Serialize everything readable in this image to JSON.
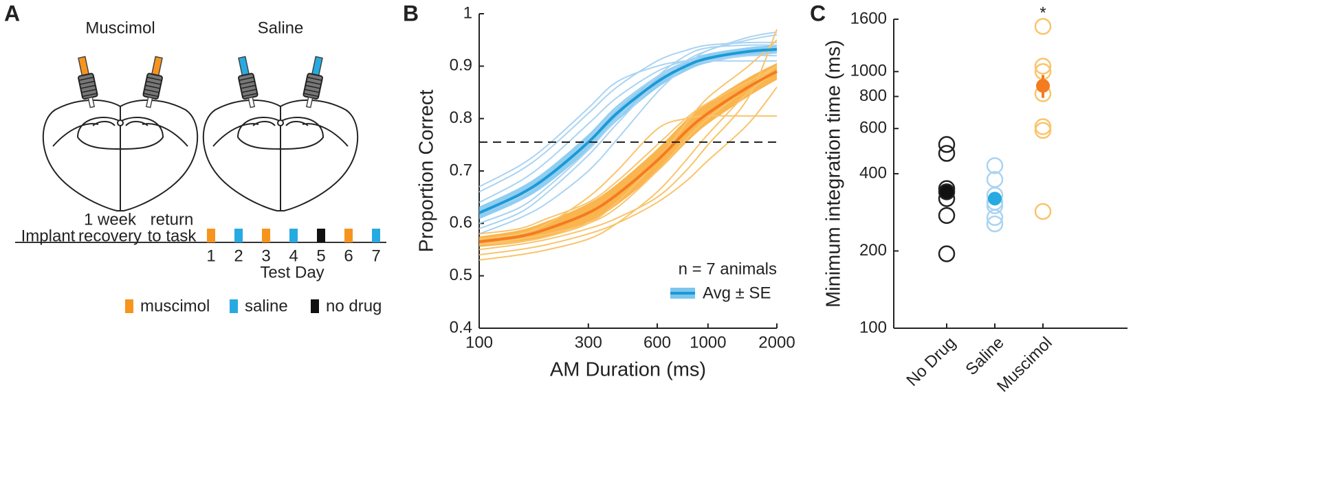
{
  "panel_labels": [
    "A",
    "B",
    "C"
  ],
  "diagram": {
    "drugs": [
      {
        "name": "Muscimol",
        "color": "#f7941d"
      },
      {
        "name": "Saline",
        "color": "#27aae1"
      }
    ],
    "timeline": [
      [
        "Implant"
      ],
      [
        "1 week",
        "recovery"
      ],
      [
        "return",
        "to task"
      ]
    ],
    "days": [
      "1",
      "2",
      "3",
      "4",
      "5",
      "6",
      "7"
    ],
    "day_colors": [
      "#f7941d",
      "#27aae1",
      "#f7941d",
      "#27aae1",
      "#111111",
      "#f7941d",
      "#27aae1"
    ],
    "axis_label": "Test Day",
    "legend": [
      {
        "name": "muscimol",
        "color": "#f7941d"
      },
      {
        "name": "saline",
        "color": "#27aae1"
      },
      {
        "name": "no drug",
        "color": "#111111"
      }
    ]
  },
  "chart_data": [
    {
      "type": "line",
      "xlabel": "AM Duration (ms)",
      "ylabel": "Proportion Correct",
      "xscale": "log",
      "x": [
        100,
        150,
        200,
        300,
        400,
        600,
        800,
        1000,
        1500,
        2000
      ],
      "xlim": [
        100,
        2000
      ],
      "xticks": [
        100,
        300,
        600,
        1000,
        2000
      ],
      "ylim": [
        0.4,
        1
      ],
      "yticks": [
        0.4,
        0.5,
        0.6,
        0.7,
        0.8,
        0.9,
        1
      ],
      "reference_line": 0.755,
      "legend_title": "n = 7 animals",
      "legend": "lower right",
      "series": [
        {
          "color": "#a9d3f2",
          "line_width": 2,
          "values": [
            0.66,
            0.7,
            0.74,
            0.81,
            0.86,
            0.91,
            0.93,
            0.94,
            0.945,
            0.945
          ]
        },
        {
          "color": "#a9d3f2",
          "line_width": 2,
          "values": [
            0.6,
            0.63,
            0.67,
            0.74,
            0.8,
            0.88,
            0.92,
            0.935,
            0.94,
            0.94
          ]
        },
        {
          "color": "#a9d3f2",
          "line_width": 2,
          "values": [
            0.58,
            0.61,
            0.64,
            0.7,
            0.76,
            0.85,
            0.9,
            0.93,
            0.95,
            0.96
          ]
        },
        {
          "color": "#a9d3f2",
          "line_width": 2,
          "values": [
            0.64,
            0.68,
            0.72,
            0.79,
            0.84,
            0.89,
            0.91,
            0.915,
            0.92,
            0.92
          ]
        },
        {
          "color": "#a9d3f2",
          "line_width": 2,
          "values": [
            0.67,
            0.71,
            0.75,
            0.82,
            0.87,
            0.9,
            0.91,
            0.91,
            0.91,
            0.91
          ]
        },
        {
          "color": "#a9d3f2",
          "line_width": 2,
          "values": [
            0.59,
            0.62,
            0.66,
            0.73,
            0.79,
            0.87,
            0.91,
            0.93,
            0.955,
            0.965
          ]
        },
        {
          "color": "#a9d3f2",
          "line_width": 2,
          "values": [
            0.62,
            0.65,
            0.69,
            0.76,
            0.82,
            0.88,
            0.9,
            0.91,
            0.92,
            0.925
          ]
        },
        {
          "color": "#f9c46b",
          "line_width": 2,
          "values": [
            0.56,
            0.57,
            0.58,
            0.6,
            0.63,
            0.7,
            0.76,
            0.8,
            0.86,
            0.9
          ]
        },
        {
          "color": "#f9c46b",
          "line_width": 2,
          "values": [
            0.53,
            0.54,
            0.55,
            0.57,
            0.6,
            0.66,
            0.72,
            0.77,
            0.85,
            0.89
          ]
        },
        {
          "color": "#f9c46b",
          "line_width": 2,
          "values": [
            0.57,
            0.58,
            0.6,
            0.65,
            0.7,
            0.78,
            0.8,
            0.805,
            0.805,
            0.805
          ]
        },
        {
          "color": "#f9c46b",
          "line_width": 2,
          "values": [
            0.55,
            0.56,
            0.57,
            0.59,
            0.61,
            0.65,
            0.7,
            0.75,
            0.84,
            0.97
          ]
        },
        {
          "color": "#f9c46b",
          "line_width": 2,
          "values": [
            0.58,
            0.59,
            0.61,
            0.64,
            0.68,
            0.75,
            0.8,
            0.83,
            0.87,
            0.9
          ]
        },
        {
          "color": "#f9c46b",
          "line_width": 2,
          "values": [
            0.54,
            0.55,
            0.56,
            0.58,
            0.6,
            0.64,
            0.68,
            0.72,
            0.79,
            0.86
          ]
        },
        {
          "color": "#f9c46b",
          "line_width": 2,
          "values": [
            0.56,
            0.565,
            0.575,
            0.6,
            0.64,
            0.72,
            0.79,
            0.84,
            0.9,
            0.95
          ]
        },
        {
          "name": "Avg ± SE",
          "color": "#1b9ad6",
          "band_color": "#7cc6ee",
          "line_width": 4,
          "values": [
            0.62,
            0.655,
            0.69,
            0.755,
            0.81,
            0.87,
            0.9,
            0.915,
            0.928,
            0.932
          ],
          "se": [
            0.012,
            0.013,
            0.014,
            0.015,
            0.015,
            0.012,
            0.01,
            0.009,
            0.008,
            0.008
          ]
        },
        {
          "color": "#f47b20",
          "band_color": "#f9a830",
          "line_width": 4,
          "values": [
            0.565,
            0.575,
            0.59,
            0.62,
            0.655,
            0.72,
            0.775,
            0.81,
            0.86,
            0.89
          ],
          "se": [
            0.01,
            0.012,
            0.015,
            0.018,
            0.02,
            0.022,
            0.022,
            0.02,
            0.018,
            0.016
          ]
        }
      ]
    },
    {
      "type": "scatter",
      "ylabel": "Minimum integration time (ms)",
      "yscale": "log",
      "categories": [
        "No Drug",
        "Saline",
        "Muscimol"
      ],
      "ylim": [
        100,
        1600
      ],
      "yticks": [
        100,
        200,
        400,
        600,
        800,
        1000,
        1600
      ],
      "series": [
        {
          "color": "#222222",
          "mean_color": "#111111",
          "values": [
            520,
            480,
            350,
            340,
            320,
            275,
            195
          ],
          "mean": 340,
          "error": 12
        },
        {
          "color": "#a9d3f2",
          "mean_color": "#27aae1",
          "values": [
            430,
            380,
            330,
            310,
            300,
            270,
            255
          ],
          "mean": 320,
          "error": 18
        },
        {
          "color": "#f9c46b",
          "mean_color": "#f47b20",
          "values": [
            1500,
            1050,
            1000,
            820,
            610,
            590,
            285
          ],
          "mean": 880,
          "error": 90,
          "annotation": "*"
        }
      ]
    }
  ]
}
